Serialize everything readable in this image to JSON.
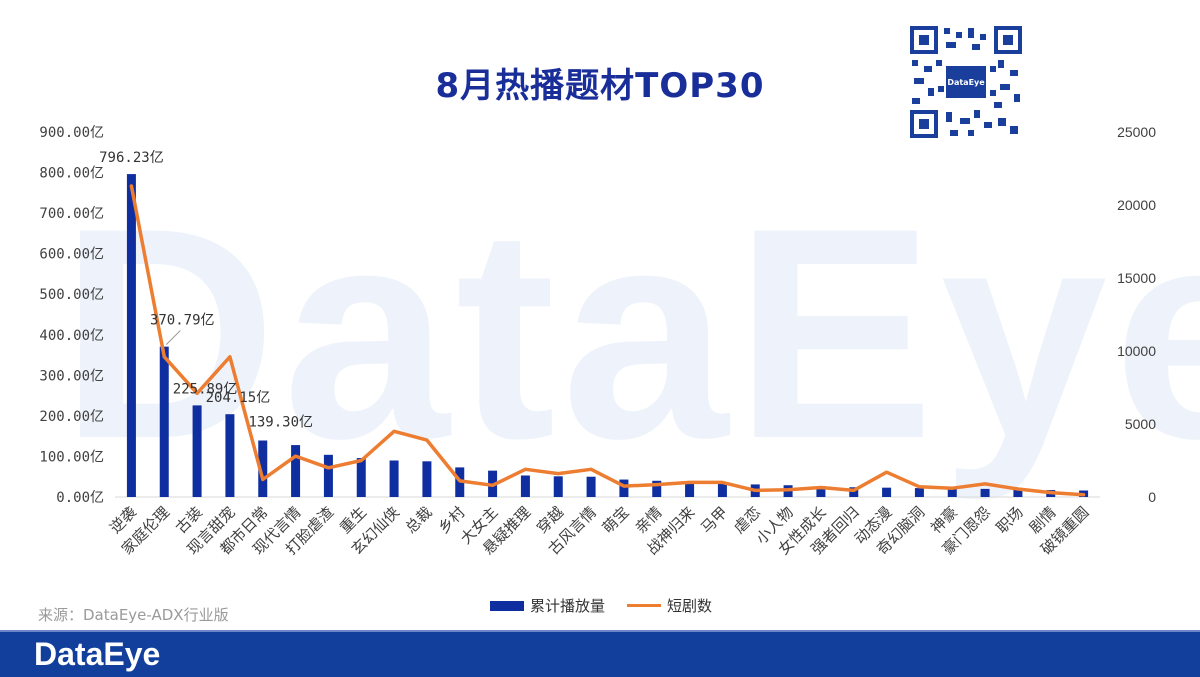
{
  "title": "8月热播题材TOP30",
  "watermark": "DataEye",
  "qr_label": "DataEye",
  "source": "来源：DataEye-ADX行业版",
  "footer_logo": "DataEye",
  "colors": {
    "bar": "#0f2ea0",
    "line": "#ed7d31",
    "title": "#1a2e9a",
    "footer": "#123f9b"
  },
  "chart_data": {
    "type": "bar",
    "title": "8月热播题材TOP30",
    "categories": [
      "逆袭",
      "家庭伦理",
      "古装",
      "现言甜宠",
      "都市日常",
      "现代言情",
      "打脸虐渣",
      "重生",
      "玄幻仙侠",
      "总裁",
      "乡村",
      "大女主",
      "悬疑推理",
      "穿越",
      "古风言情",
      "萌宝",
      "亲情",
      "战神归来",
      "马甲",
      "虐恋",
      "小人物",
      "女性成长",
      "强者回归",
      "动态漫",
      "奇幻脑洞",
      "神豪",
      "豪门恩怨",
      "职场",
      "剧情",
      "破镜重圆"
    ],
    "series": [
      {
        "name": "累计播放量",
        "type": "bar",
        "axis": "left",
        "values": [
          796.23,
          370.79,
          225.89,
          204.15,
          139.3,
          128,
          104,
          96,
          90,
          88,
          73,
          65,
          53,
          51,
          50,
          43,
          40,
          37,
          35,
          31,
          29,
          27,
          24,
          23,
          22,
          21,
          20,
          19,
          17,
          16
        ]
      },
      {
        "name": "短剧数",
        "type": "line",
        "axis": "right",
        "values": [
          21300,
          9600,
          7100,
          9600,
          1200,
          2800,
          2000,
          2500,
          4500,
          3900,
          1100,
          800,
          1900,
          1600,
          1900,
          750,
          850,
          1000,
          1000,
          450,
          500,
          650,
          450,
          1700,
          700,
          600,
          900,
          550,
          300,
          150
        ]
      }
    ],
    "data_labels": [
      "796.23亿",
      "370.79亿",
      "225.89亿",
      "204.15亿",
      "139.30亿"
    ],
    "y_left": {
      "min": 0,
      "max": 900,
      "step": 100,
      "tick_labels": [
        "0.00亿",
        "100.00亿",
        "200.00亿",
        "300.00亿",
        "400.00亿",
        "500.00亿",
        "600.00亿",
        "700.00亿",
        "800.00亿",
        "900.00亿"
      ]
    },
    "y_right": {
      "min": 0,
      "max": 25000,
      "step": 5000,
      "tick_labels": [
        "0",
        "5000",
        "10000",
        "15000",
        "20000",
        "25000"
      ]
    },
    "legend": [
      "累计播放量",
      "短剧数"
    ],
    "legend_position": "bottom-center"
  }
}
